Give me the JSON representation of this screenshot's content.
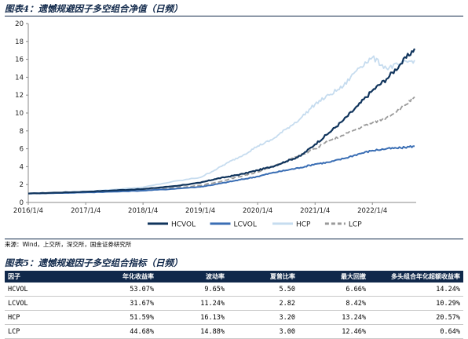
{
  "figure4": {
    "title": "图表4：遗憾规避因子多空组合净值（日频）"
  },
  "chart_data": {
    "type": "line",
    "title": "",
    "xlabel": "",
    "ylabel": "",
    "ylim": [
      0,
      20
    ],
    "yticks": [
      0,
      2,
      4,
      6,
      8,
      10,
      12,
      14,
      16,
      18,
      20
    ],
    "xticks": [
      "2016/1/4",
      "2017/1/4",
      "2018/1/4",
      "2019/1/4",
      "2020/1/4",
      "2021/1/4",
      "2022/1/4"
    ],
    "x": [
      "2016/1/4",
      "2016/7/4",
      "2017/1/4",
      "2017/7/4",
      "2018/1/4",
      "2018/7/4",
      "2019/1/4",
      "2019/4/4",
      "2019/7/4",
      "2019/10/4",
      "2020/1/4",
      "2020/4/4",
      "2020/7/4",
      "2020/10/4",
      "2021/1/4",
      "2021/4/4",
      "2021/7/4",
      "2021/10/4",
      "2022/1/4",
      "2022/4/4",
      "2022/7/4",
      "2022/9/30"
    ],
    "legend_position": "bottom",
    "series": [
      {
        "name": "HCVOL",
        "color": "#10345c",
        "dash": false,
        "values": [
          1.0,
          1.1,
          1.2,
          1.35,
          1.5,
          1.8,
          2.2,
          2.6,
          2.9,
          3.2,
          3.6,
          4.0,
          4.6,
          5.2,
          6.5,
          7.8,
          9.2,
          10.8,
          12.5,
          13.8,
          15.5,
          17.2
        ]
      },
      {
        "name": "LCVOL",
        "color": "#3a6eb4",
        "dash": false,
        "values": [
          1.0,
          1.05,
          1.12,
          1.2,
          1.32,
          1.5,
          1.75,
          2.0,
          2.3,
          2.6,
          2.9,
          3.3,
          3.6,
          3.9,
          4.3,
          4.5,
          4.9,
          5.4,
          5.8,
          6.0,
          6.1,
          6.3
        ]
      },
      {
        "name": "HCP",
        "color": "#c6dcef",
        "dash": false,
        "values": [
          1.0,
          1.1,
          1.25,
          1.45,
          1.7,
          2.3,
          2.8,
          3.6,
          4.5,
          5.3,
          6.3,
          7.0,
          8.2,
          9.4,
          11.0,
          12.0,
          13.0,
          15.0,
          16.2,
          15.0,
          15.5,
          15.9
        ]
      },
      {
        "name": "LCP",
        "color": "#9a9a9a",
        "dash": true,
        "values": [
          1.0,
          1.05,
          1.15,
          1.25,
          1.4,
          1.6,
          1.9,
          2.2,
          2.6,
          3.0,
          3.4,
          4.0,
          4.6,
          5.3,
          6.0,
          6.9,
          7.5,
          8.3,
          8.9,
          9.5,
          10.5,
          11.8
        ]
      }
    ]
  },
  "source": {
    "text": "来源：Wind，上交所，深交所，国金证券研究所"
  },
  "figure5": {
    "title": "图表5：遗憾规避因子多空组合指标（日频）",
    "headers": [
      "因子",
      "年化收益率",
      "波动率",
      "夏普比率",
      "最大回撤",
      "多头组合年化超额收益率"
    ],
    "rows": [
      [
        "HCVOL",
        "53.07%",
        "9.65%",
        "5.50",
        "6.66%",
        "14.24%"
      ],
      [
        "LCVOL",
        "31.67%",
        "11.24%",
        "2.82",
        "8.42%",
        "10.29%"
      ],
      [
        "HCP",
        "51.59%",
        "16.13%",
        "3.20",
        "13.24%",
        "20.57%"
      ],
      [
        "LCP",
        "44.68%",
        "14.88%",
        "3.00",
        "12.46%",
        "0.64%"
      ]
    ]
  }
}
